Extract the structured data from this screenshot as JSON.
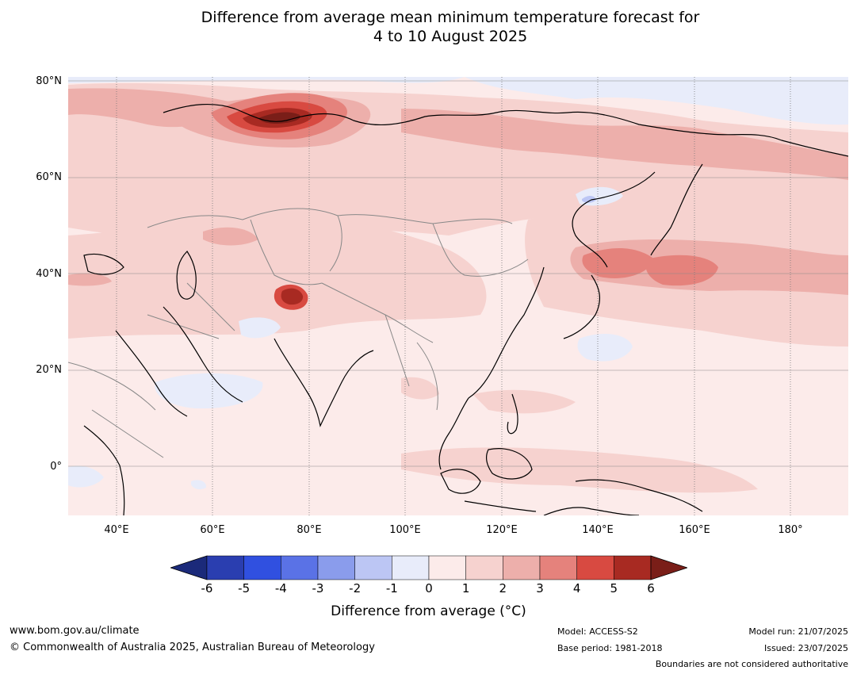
{
  "title_line1": "Difference from average mean minimum temperature forecast for",
  "title_line2": "4 to 10 August 2025",
  "lat_labels": [
    "80°N",
    "60°N",
    "40°N",
    "20°N",
    "0°"
  ],
  "lon_labels": [
    "40°E",
    "60°E",
    "80°E",
    "100°E",
    "120°E",
    "140°E",
    "160°E",
    "180°"
  ],
  "colorbar": {
    "ticks": [
      "-6",
      "-5",
      "-4",
      "-3",
      "-2",
      "-1",
      "0",
      "1",
      "2",
      "3",
      "4",
      "5",
      "6"
    ],
    "colors": [
      "#1b2a7a",
      "#2a3eb0",
      "#3050e0",
      "#5a72e6",
      "#8a9cec",
      "#bcc6f4",
      "#e8ecfa",
      "#fcebea",
      "#f6d2cf",
      "#edafab",
      "#e5827c",
      "#d84a41",
      "#a82a22",
      "#7a1e18"
    ],
    "label": "Difference from average (°C)"
  },
  "footer": {
    "website": "www.bom.gov.au/climate",
    "copyright": "© Commonwealth of Australia 2025, Australian Bureau of Meteorology",
    "model": "Model: ACCESS-S2",
    "base_period": "Base period: 1981-2018",
    "model_run": "Model run: 21/07/2025",
    "issued": "Issued: 23/07/2025",
    "disclaimer": "Boundaries are not considered authoritative"
  }
}
